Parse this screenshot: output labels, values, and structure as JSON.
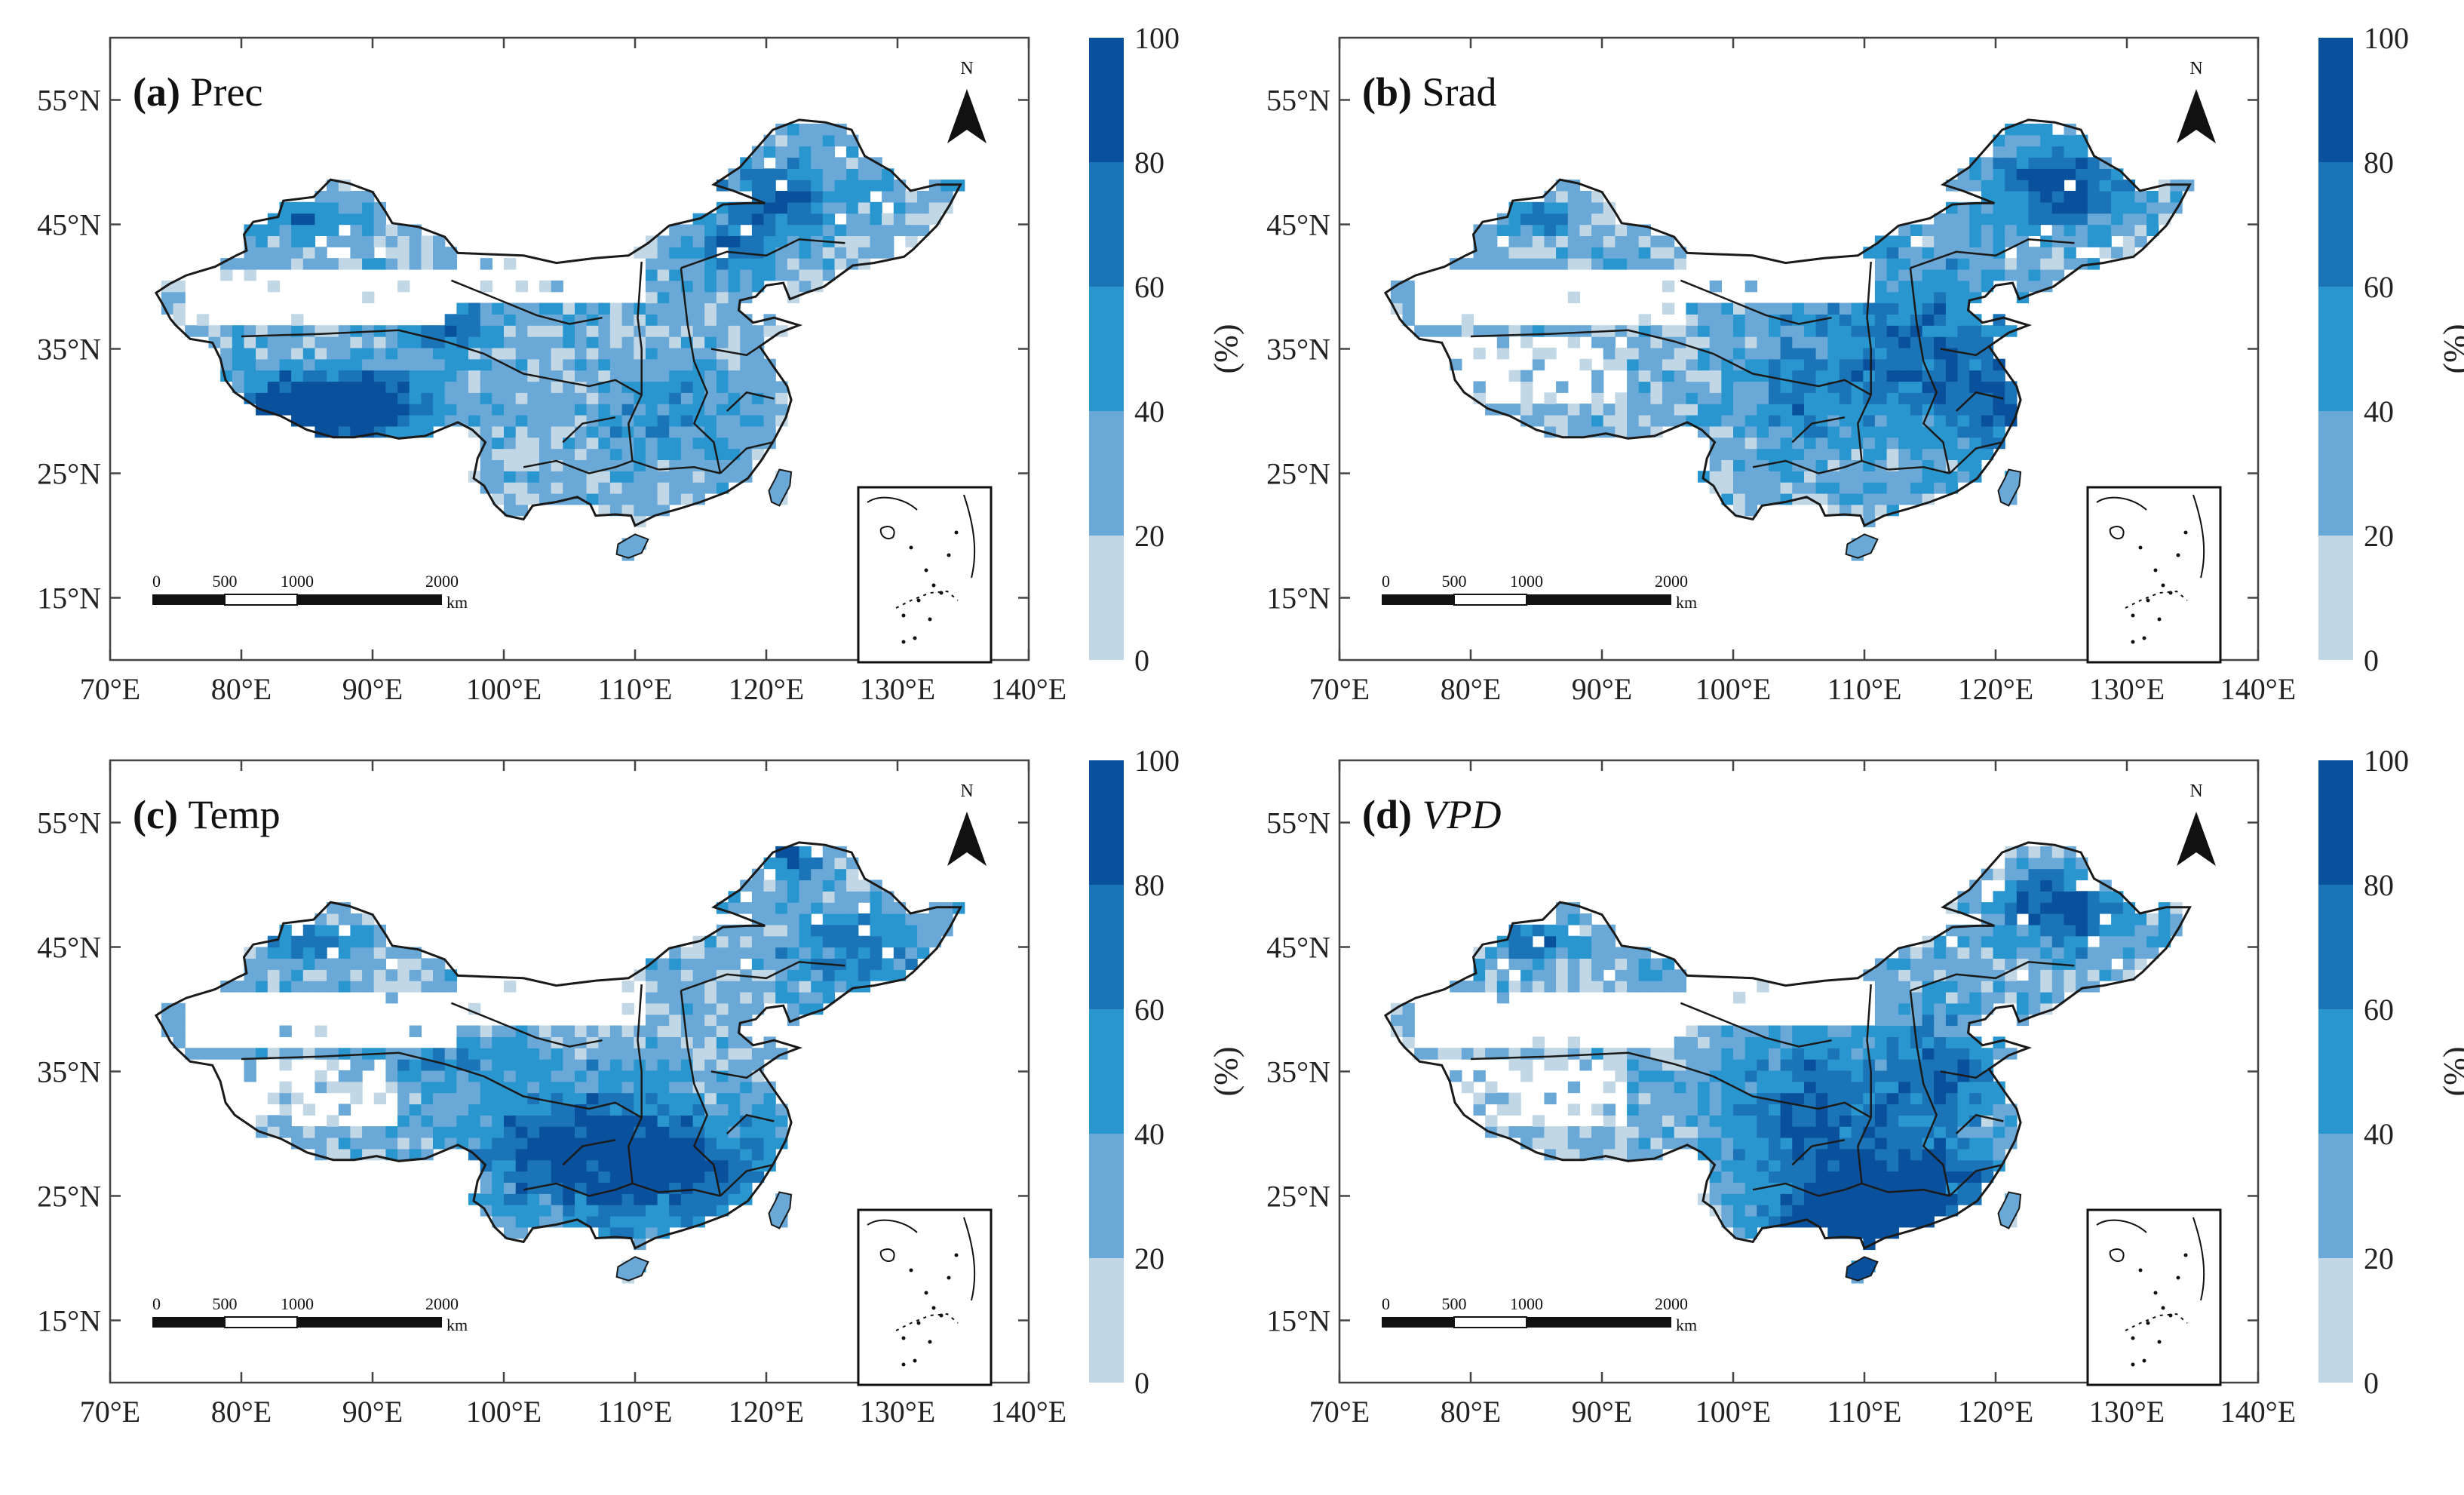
{
  "figure": {
    "x_ticks": [
      "70°E",
      "80°E",
      "90°E",
      "100°E",
      "110°E",
      "120°E",
      "130°E",
      "140°E"
    ],
    "y_ticks": [
      "55°N",
      "45°N",
      "35°N",
      "25°N",
      "15°N"
    ],
    "north_label": "N",
    "scale_bar": {
      "labels": [
        "0",
        "500",
        "1000",
        "2000"
      ],
      "unit": "km"
    },
    "colorbar": {
      "unit": "(%)",
      "ticks": [
        "100",
        "80",
        "60",
        "40",
        "20",
        "0"
      ],
      "colors": [
        "#c2d7e6",
        "#6aa9d7",
        "#2a96cf",
        "#1a74b7",
        "#09509d"
      ]
    },
    "colors": {
      "map_fill": "#c2d7e6",
      "border": "#1a1a1a",
      "background": "#ffffff"
    }
  },
  "panels": [
    {
      "id": "a",
      "letter": "(a)",
      "title": "Prec",
      "italic": false
    },
    {
      "id": "b",
      "letter": "(b)",
      "title": "Srad",
      "italic": false
    },
    {
      "id": "c",
      "letter": "(c)",
      "title": "Temp",
      "italic": false
    },
    {
      "id": "d",
      "letter": "(d)",
      "title": "VPD",
      "italic": true
    }
  ]
}
